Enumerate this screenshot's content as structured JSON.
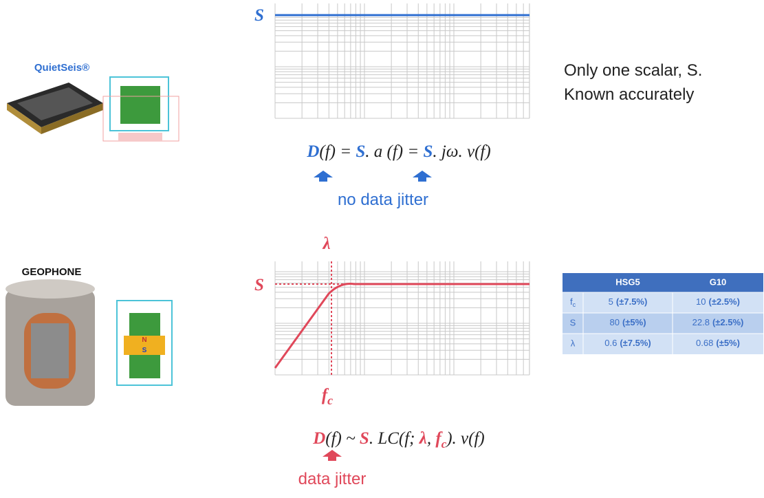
{
  "top": {
    "device": "QuietSeis®",
    "axis_label": "S",
    "formula": [
      "D",
      "(f) = ",
      "S",
      ". a (f) = ",
      "S",
      ". jω. v(f)"
    ],
    "note": "no data jitter",
    "comment": [
      "Only one scalar, S.",
      "Known accurately"
    ]
  },
  "bottom": {
    "device": "GEOPHONE",
    "lambda_label": "λ",
    "axis_label": "S",
    "fc_label": {
      "base": "f",
      "sub": "c"
    },
    "formula": [
      "D",
      "(f) ~ ",
      "S",
      ". LC(f; ",
      "λ",
      ", ",
      "f",
      "c",
      "). v(f)"
    ],
    "note": "data jitter"
  },
  "table": {
    "header": [
      "",
      "HSG5",
      "G10"
    ],
    "rows": [
      [
        {
          "base": "f",
          "sub": "c"
        },
        {
          "value": "5",
          "tol": "(±7.5%)"
        },
        {
          "value": "10",
          "tol": "(±2.5%)"
        }
      ],
      [
        "S",
        {
          "value": "80",
          "tol": "(±5%)"
        },
        {
          "value": "22.8",
          "tol": "(±2.5%)"
        }
      ],
      [
        "λ",
        {
          "value": "0.6",
          "tol": "(±7.5%)"
        },
        {
          "value": "0.68",
          "tol": "(±5%)"
        }
      ]
    ]
  }
}
